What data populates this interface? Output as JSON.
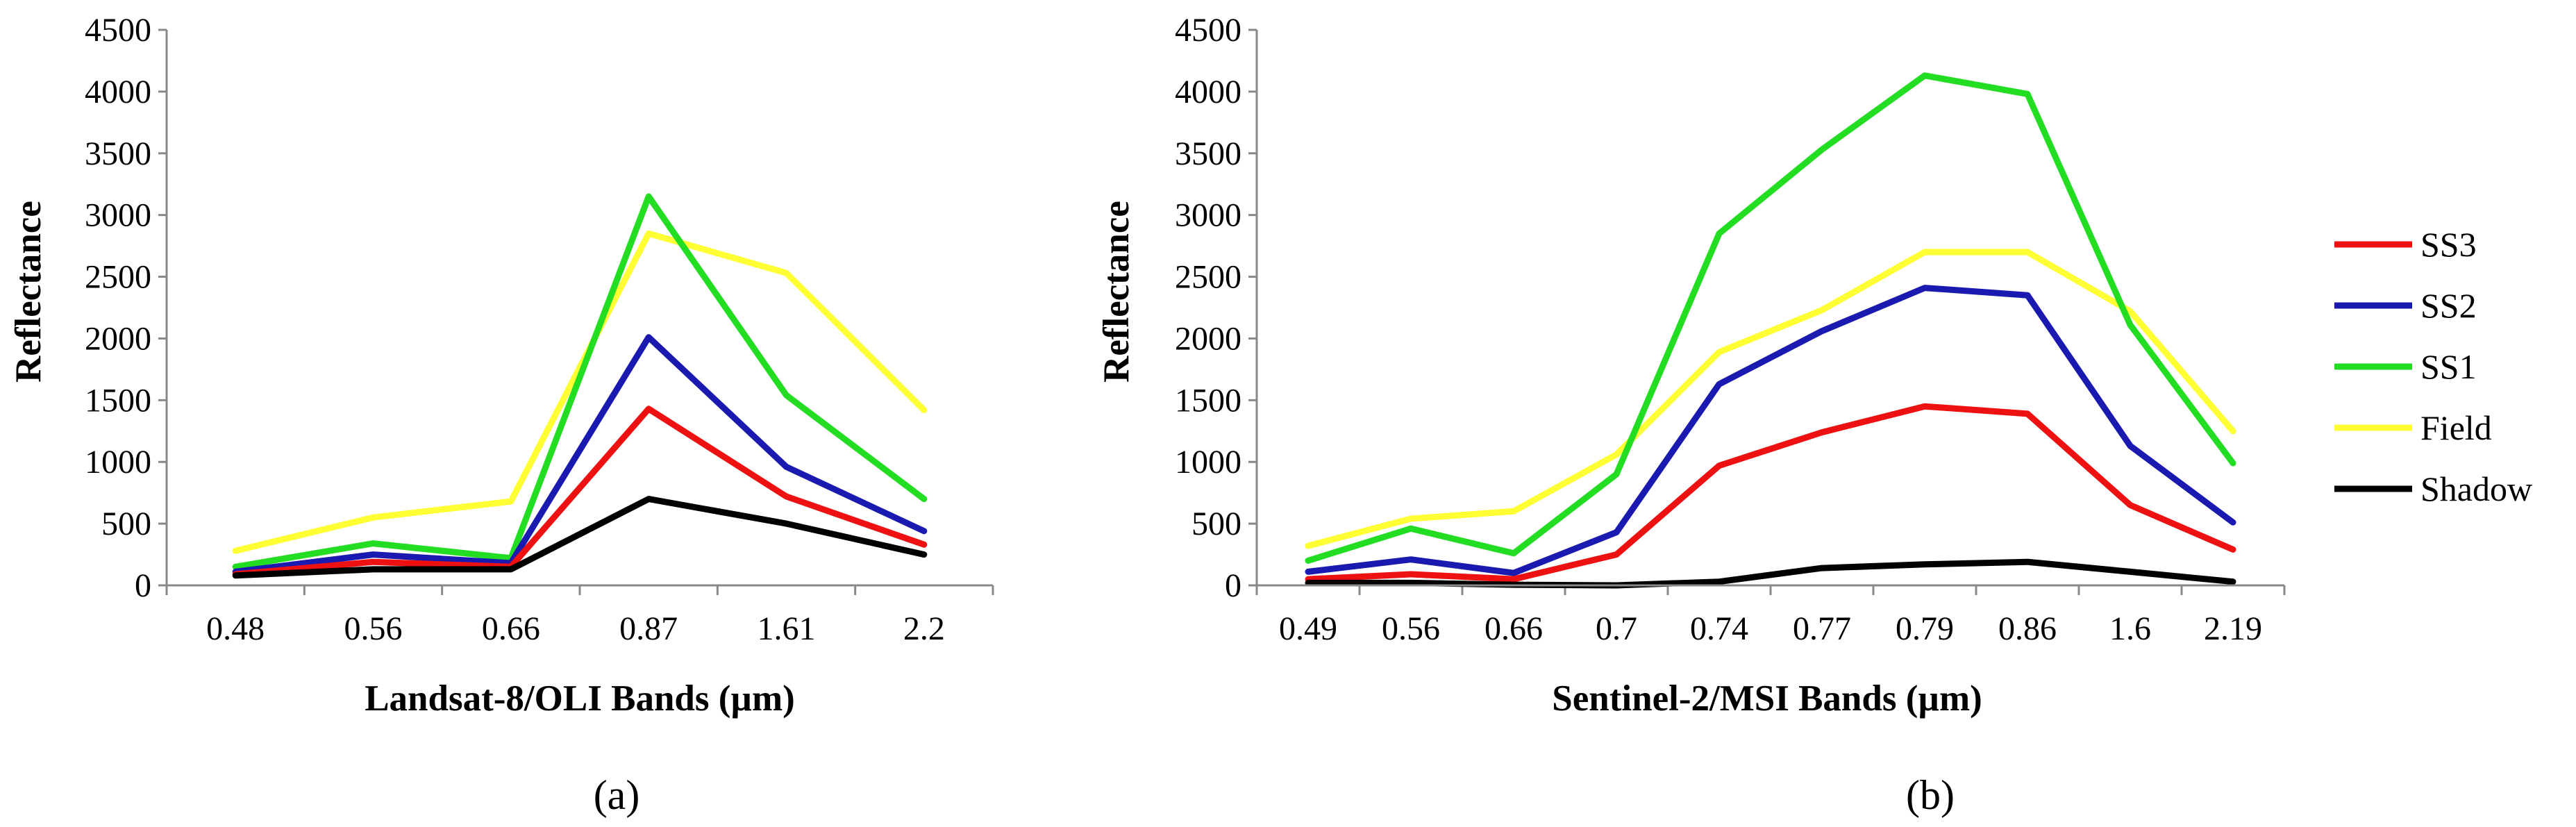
{
  "chart_data": [
    {
      "type": "line",
      "panel_label": "(a)",
      "title": "",
      "xlabel": "Landsat-8/OLI Bands (µm)",
      "ylabel": "Reflectance",
      "ylim": [
        0,
        4500
      ],
      "yticks": [
        "0",
        "500",
        "1000",
        "1500",
        "2000",
        "2500",
        "3000",
        "3500",
        "4000",
        "4500"
      ],
      "categories": [
        "0.48",
        "0.56",
        "0.66",
        "0.87",
        "1.61",
        "2.2"
      ],
      "series": [
        {
          "name": "Field",
          "color": "#ffff33",
          "values": [
            280,
            550,
            680,
            2850,
            2530,
            1420
          ]
        },
        {
          "name": "SS1",
          "color": "#22dd22",
          "values": [
            150,
            340,
            220,
            3150,
            1540,
            700
          ]
        },
        {
          "name": "SS2",
          "color": "#1a1ab0",
          "values": [
            110,
            250,
            180,
            2010,
            960,
            440
          ]
        },
        {
          "name": "SS3",
          "color": "#ee1111",
          "values": [
            90,
            190,
            150,
            1430,
            720,
            330
          ]
        },
        {
          "name": "Shadow",
          "color": "#000000",
          "values": [
            80,
            130,
            130,
            700,
            500,
            250
          ]
        }
      ]
    },
    {
      "type": "line",
      "panel_label": "(b)",
      "title": "",
      "xlabel": "Sentinel-2/MSI Bands (µm)",
      "ylabel": "Reflectance",
      "ylim": [
        0,
        4500
      ],
      "yticks": [
        "0",
        "500",
        "1000",
        "1500",
        "2000",
        "2500",
        "3000",
        "3500",
        "4000",
        "4500"
      ],
      "categories": [
        "0.49",
        "0.56",
        "0.66",
        "0.7",
        "0.74",
        "0.77",
        "0.79",
        "0.86",
        "1.6",
        "2.19"
      ],
      "series": [
        {
          "name": "Field",
          "color": "#ffff33",
          "values": [
            320,
            540,
            600,
            1060,
            1890,
            2230,
            2700,
            2700,
            2220,
            1250
          ]
        },
        {
          "name": "SS1",
          "color": "#22dd22",
          "values": [
            200,
            460,
            260,
            900,
            2850,
            3530,
            4130,
            3980,
            2110,
            990
          ]
        },
        {
          "name": "SS2",
          "color": "#1a1ab0",
          "values": [
            110,
            210,
            100,
            430,
            1630,
            2060,
            2410,
            2350,
            1130,
            510
          ]
        },
        {
          "name": "SS3",
          "color": "#ee1111",
          "values": [
            50,
            90,
            50,
            250,
            970,
            1240,
            1450,
            1390,
            650,
            290
          ]
        },
        {
          "name": "Shadow",
          "color": "#000000",
          "values": [
            20,
            20,
            5,
            0,
            30,
            140,
            170,
            190,
            110,
            30
          ]
        }
      ]
    }
  ],
  "legend": {
    "items": [
      {
        "name": "SS3",
        "color": "#ee1111"
      },
      {
        "name": "SS2",
        "color": "#1a1ab0"
      },
      {
        "name": "SS1",
        "color": "#22dd22"
      },
      {
        "name": "Field",
        "color": "#ffff33"
      },
      {
        "name": "Shadow",
        "color": "#000000"
      }
    ]
  }
}
